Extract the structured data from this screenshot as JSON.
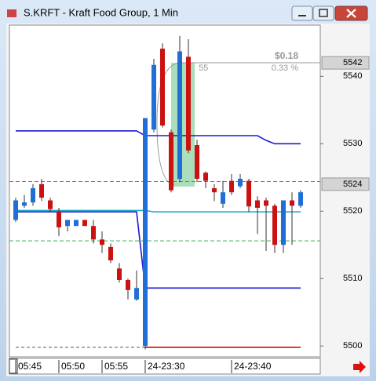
{
  "window": {
    "title": "S.KRFT - Kraft Food Group, 1 Min"
  },
  "chart_data": {
    "type": "candlestick",
    "categories": [
      "05:45",
      null,
      null,
      null,
      null,
      "05:50",
      null,
      null,
      null,
      null,
      "05:55",
      null,
      null,
      null,
      null,
      "24-23:30",
      null,
      null,
      null,
      null,
      null,
      null,
      null,
      null,
      null,
      "24-23:40",
      null,
      null,
      null,
      null,
      null,
      null,
      null,
      null
    ],
    "up_color": "#1f6fd6",
    "down_color": "#cc1111",
    "open": [
      5518.7,
      5520.8,
      5521.3,
      5524.0,
      5521.6,
      5519.9,
      5517.8,
      5517.8,
      5518.7,
      5517.8,
      5515.8,
      5514.7,
      5511.5,
      5509.8,
      5506.9,
      5500.0,
      5532.1,
      5544.1,
      5531.7,
      5524.8,
      5542.9,
      5529.8,
      5525.7,
      5523.4,
      5521.1,
      5524.5,
      5523.7,
      5524.5,
      5521.6,
      5521.6,
      5520.8,
      5515.0,
      5521.6,
      5520.8
    ],
    "high": [
      5522.0,
      5522.4,
      5524.0,
      5524.8,
      5522.0,
      5520.5,
      5518.7,
      5518.7,
      5518.7,
      5518.7,
      5517.0,
      5515.2,
      5512.3,
      5510.0,
      5511.2,
      5533.8,
      5542.6,
      5544.9,
      5532.1,
      5546.0,
      5545.5,
      5530.6,
      5525.9,
      5524.0,
      5524.5,
      5525.5,
      5525.5,
      5524.8,
      5522.2,
      5522.0,
      5521.1,
      5521.6,
      5522.8,
      5523.1
    ],
    "low": [
      5518.4,
      5520.5,
      5520.8,
      5521.5,
      5519.9,
      5516.3,
      5517.0,
      5517.8,
      5517.8,
      5515.2,
      5513.8,
      5512.3,
      5509.4,
      5506.9,
      5506.7,
      5499.5,
      5531.7,
      5532.4,
      5522.8,
      5524.3,
      5528.6,
      5524.3,
      5523.4,
      5521.5,
      5520.5,
      5522.4,
      5523.4,
      5519.9,
      5516.6,
      5514.1,
      5513.8,
      5513.8,
      5515.0,
      5520.5
    ],
    "close": [
      5521.6,
      5521.3,
      5523.4,
      5522.0,
      5520.3,
      5517.6,
      5518.7,
      5518.7,
      5517.8,
      5515.8,
      5515.0,
      5512.7,
      5509.8,
      5508.3,
      5508.6,
      5533.8,
      5541.7,
      5532.7,
      5523.1,
      5543.7,
      5529.0,
      5524.8,
      5524.5,
      5522.8,
      5522.8,
      5522.8,
      5524.8,
      5520.7,
      5520.5,
      5520.8,
      5515.0,
      5521.6,
      5520.8,
      5522.8
    ],
    "overlays": [
      {
        "color": "#1b1bd0",
        "dash": false,
        "values": [
          5531.9,
          5531.9,
          5531.9,
          5531.9,
          5531.9,
          5531.9,
          5531.9,
          5531.9,
          5531.9,
          5531.9,
          5531.9,
          5531.9,
          5531.9,
          5531.9,
          5531.9,
          5531.2,
          5531.2,
          5531.2,
          5531.2,
          5531.2,
          5531.2,
          5531.2,
          5531.2,
          5531.2,
          5531.2,
          5531.2,
          5531.2,
          5531.2,
          5531.2,
          5530.5,
          5530.0,
          5530.0,
          5530.0,
          5530.0
        ]
      },
      {
        "color": "#1b1bd0",
        "dash": false,
        "values": [
          5519.9,
          5519.9,
          5519.9,
          5519.9,
          5519.9,
          5519.9,
          5519.9,
          5519.9,
          5519.9,
          5519.9,
          5519.9,
          5519.9,
          5519.9,
          5519.9,
          5519.9,
          5508.6,
          5508.6,
          5508.6,
          5508.6,
          5508.6,
          5508.6,
          5508.6,
          5508.6,
          5508.6,
          5508.6,
          5508.6,
          5508.6,
          5508.6,
          5508.6,
          5508.6,
          5508.6,
          5508.6,
          5508.6,
          5508.6
        ]
      },
      {
        "color": "#22aacc",
        "dash": false,
        "values": [
          5520.1,
          5520.1,
          5520.1,
          5520.1,
          5520.1,
          5520.1,
          5520.1,
          5520.1,
          5520.1,
          5520.1,
          5520.1,
          5520.1,
          5520.1,
          5520.1,
          5520.1,
          5520.1,
          5519.9,
          5519.9,
          5519.9,
          5519.9,
          5519.9,
          5519.9,
          5519.9,
          5519.9,
          5519.9,
          5519.9,
          5519.9,
          5519.9,
          5519.9,
          5519.9,
          5519.9,
          5519.9,
          5519.9,
          5519.9
        ]
      },
      {
        "color": "#cc1111",
        "dash": false,
        "values": [
          null,
          null,
          null,
          null,
          null,
          null,
          null,
          null,
          null,
          null,
          null,
          null,
          null,
          null,
          null,
          5499.8,
          5499.8,
          5499.8,
          5499.8,
          5499.8,
          5499.8,
          5499.8,
          5499.8,
          5499.8,
          5499.8,
          5499.8,
          5499.8,
          5499.8,
          5499.8,
          5499.8,
          5499.8,
          5499.8,
          5499.8,
          5499.8
        ]
      },
      {
        "color": "#999999",
        "dash": true,
        "values": [
          5499.8,
          5499.8,
          5499.8,
          5499.8,
          5499.8,
          5499.8,
          5499.8,
          5499.8,
          5499.8,
          5499.8,
          5499.8,
          5499.8,
          5499.8,
          5499.8,
          5499.8,
          5499.8,
          null,
          null,
          null,
          null,
          null,
          null,
          null,
          null,
          null,
          null,
          null,
          null,
          null,
          null,
          null,
          null,
          null,
          null
        ]
      }
    ],
    "levels": [
      {
        "value": 5524.4,
        "color": "#33aa55"
      },
      {
        "value": 5515.6,
        "color": "#33aa55"
      }
    ],
    "price_markers": [
      5542,
      5524
    ],
    "annotation": {
      "change": "$0.18",
      "percent": "0.33 %",
      "bars": "55"
    },
    "ylim": [
      5498.4,
      5547.6
    ],
    "yticks": [
      5500,
      5510,
      5520,
      5530,
      5540
    ]
  }
}
